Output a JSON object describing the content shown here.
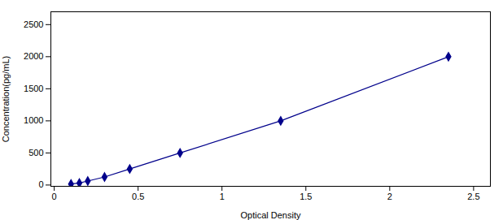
{
  "chart_data": {
    "type": "line",
    "xlabel": "Optical Density",
    "ylabel": "Concentration(pg/mL)",
    "x": [
      0.1,
      0.15,
      0.2,
      0.3,
      0.45,
      0.75,
      1.35,
      2.35
    ],
    "values": [
      15.6,
      31.25,
      62.5,
      125,
      250,
      500,
      1000,
      2000
    ],
    "yerr": [
      0.39,
      0.78125,
      1.5625,
      3.125,
      6.25,
      12.5,
      25,
      50
    ],
    "color": "#00008B",
    "marker": "diamond",
    "xlim": [
      -0.02,
      2.6
    ],
    "ylim": [
      -20,
      2700
    ],
    "xticks": [
      0,
      0.5,
      1,
      1.5,
      2,
      2.5
    ],
    "yticks": [
      0,
      500,
      1000,
      1500,
      2000,
      2500
    ],
    "grid": false
  }
}
